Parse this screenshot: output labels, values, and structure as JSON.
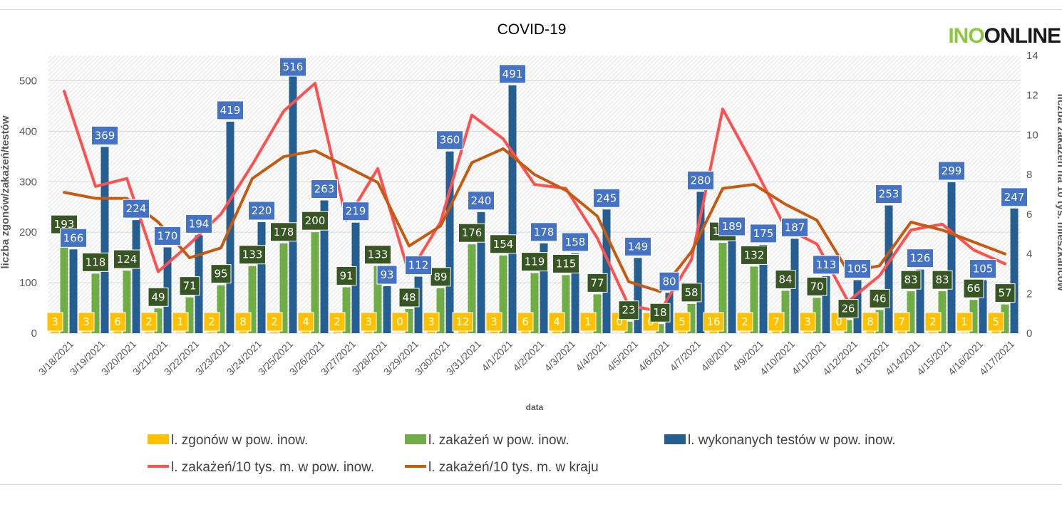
{
  "logo": {
    "part1": "INO",
    "part2": "ONLINE"
  },
  "chart_data": {
    "type": "bar",
    "title": "COVID-19",
    "xlabel": "data",
    "ylabel": "liczba zgonów/zakażeń/testów",
    "y2label": "liczba zakażeń na 10 tys. mieszkańców",
    "ylim": [
      0,
      550
    ],
    "y2lim": [
      0,
      14
    ],
    "yticks": [
      0,
      100,
      200,
      300,
      400,
      500
    ],
    "y2ticks": [
      0,
      2,
      4,
      6,
      8,
      10,
      12,
      14
    ],
    "categories": [
      "3/18/2021",
      "3/19/2021",
      "3/20/2021",
      "3/21/2021",
      "3/22/2021",
      "3/23/2021",
      "3/24/2021",
      "3/25/2021",
      "3/26/2021",
      "3/27/2021",
      "3/28/2021",
      "3/29/2021",
      "3/30/2021",
      "3/31/2021",
      "4/1/2021",
      "4/2/2021",
      "4/3/2021",
      "4/4/2021",
      "4/5/2021",
      "4/6/2021",
      "4/7/2021",
      "4/8/2021",
      "4/9/2021",
      "4/10/2021",
      "4/11/2021",
      "4/12/2021",
      "4/13/2021",
      "4/14/2021",
      "4/15/2021",
      "4/16/2021",
      "4/17/2021"
    ],
    "series": [
      {
        "name": "l. zgonów w pow. inow.",
        "kind": "bar",
        "axis": "left",
        "color": "#ffc000",
        "label_bg": "#ffc000",
        "values": [
          3,
          3,
          6,
          2,
          1,
          2,
          8,
          2,
          4,
          2,
          3,
          0,
          3,
          12,
          3,
          6,
          4,
          1,
          0,
          0,
          5,
          16,
          2,
          7,
          3,
          0,
          8,
          7,
          2,
          1,
          5
        ]
      },
      {
        "name": "l. zakażeń w pow. inow.",
        "kind": "bar",
        "axis": "left",
        "color": "#70ad47",
        "label_bg": "#375623",
        "values": [
          193,
          118,
          124,
          49,
          71,
          95,
          133,
          178,
          200,
          91,
          133,
          48,
          89,
          176,
          154,
          119,
          115,
          77,
          23,
          18,
          58,
          179,
          132,
          84,
          70,
          26,
          46,
          83,
          83,
          66,
          57
        ]
      },
      {
        "name": "l. wykonanych testów w pow. inow.",
        "kind": "bar",
        "axis": "left",
        "color": "#255e91",
        "label_bg": "#4472c4",
        "values": [
          166,
          369,
          224,
          170,
          194,
          419,
          220,
          516,
          263,
          219,
          93,
          112,
          360,
          240,
          491,
          178,
          158,
          245,
          149,
          80,
          280,
          189,
          175,
          187,
          113,
          105,
          253,
          126,
          299,
          105,
          247
        ]
      },
      {
        "name": "l. zakażeń/10 tys. m. w pow. inow.",
        "kind": "line",
        "axis": "right",
        "color": "#ff5050",
        "values": [
          12.2,
          7.4,
          7.8,
          3.1,
          4.5,
          6.0,
          8.5,
          11.2,
          12.6,
          5.7,
          8.3,
          3.0,
          5.6,
          11.0,
          9.8,
          7.5,
          7.3,
          4.8,
          1.4,
          1.1,
          3.7,
          11.3,
          8.4,
          5.3,
          4.5,
          1.6,
          2.9,
          5.2,
          5.5,
          4.2,
          3.5
        ]
      },
      {
        "name": "l. zakażeń/10 tys. m. w kraju",
        "kind": "line",
        "axis": "right",
        "color": "#c55a11",
        "values": [
          7.1,
          6.8,
          6.8,
          5.6,
          3.8,
          4.3,
          7.8,
          8.9,
          9.2,
          8.4,
          7.6,
          4.4,
          5.4,
          8.6,
          9.3,
          8.0,
          7.2,
          5.9,
          2.6,
          2.1,
          4.1,
          7.3,
          7.5,
          6.5,
          5.7,
          3.1,
          3.4,
          5.6,
          5.2,
          4.6,
          4.0
        ]
      }
    ],
    "legend_position": "bottom"
  }
}
